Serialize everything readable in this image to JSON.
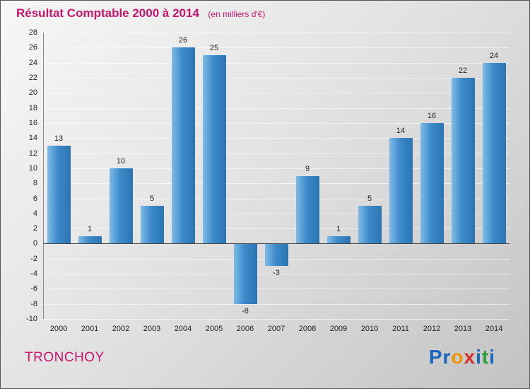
{
  "chart_data": {
    "type": "bar",
    "title": "Résultat Comptable 2000 à 2014",
    "subtitle": "(en milliers d'€)",
    "categories": [
      "2000",
      "2001",
      "2002",
      "2003",
      "2004",
      "2005",
      "2006",
      "2007",
      "2008",
      "2009",
      "2010",
      "2011",
      "2012",
      "2013",
      "2014"
    ],
    "values": [
      13,
      1,
      10,
      5,
      26,
      25,
      -8,
      -3,
      9,
      1,
      5,
      14,
      16,
      22,
      24
    ],
    "xlabel": "",
    "ylabel": "",
    "ylim": [
      -10,
      28
    ],
    "ytick_step": 2,
    "grid": true,
    "legend": "none",
    "bar_color": "#3e8bca"
  },
  "footer": {
    "company": "TRONCHOY"
  },
  "logo": {
    "name": "Proxiti",
    "letters": [
      {
        "ch": "P",
        "color": "#1565c0"
      },
      {
        "ch": "r",
        "color": "#1565c0"
      },
      {
        "ch": "o",
        "color": "#f29400"
      },
      {
        "ch": "x",
        "color": "#d62f2f"
      },
      {
        "ch": "i",
        "color": "#1565c0"
      },
      {
        "ch": "t",
        "color": "#2e9e3a"
      },
      {
        "ch": "i",
        "color": "#1565c0"
      }
    ]
  },
  "colors": {
    "title": "#c8156e",
    "company": "#c8156e",
    "tick_text": "#222222",
    "zero_line": "#444444"
  }
}
